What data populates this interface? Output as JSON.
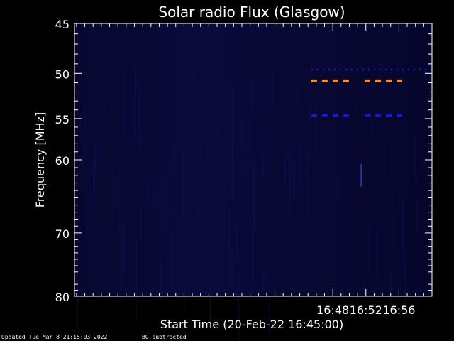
{
  "chart_data": {
    "type": "heatmap",
    "title": "Solar radio Flux (Glasgow)",
    "xlabel": "Start Time (20-Feb-22 16:45:00)",
    "ylabel": "Frequency [MHz]",
    "x_range_minutes": [
      16.75,
      60.0
    ],
    "x_ticks": [
      {
        "minute": 48,
        "label": "16:48"
      },
      {
        "minute": 52,
        "label": "16:52"
      },
      {
        "minute": 56,
        "label": "16:56"
      }
    ],
    "ylim": [
      45,
      80
    ],
    "y_scale": "log",
    "y_ticks": [
      45,
      50,
      55,
      60,
      70,
      80
    ],
    "y_tick_labels": [
      "45",
      "50",
      "55",
      "60",
      "70",
      "80"
    ],
    "grid": false,
    "background_color": "#0a0a38",
    "bands": [
      {
        "freq_mhz": 49.6,
        "color": "#1515c8",
        "segments": [
          [
            45.4,
            60.0
          ]
        ],
        "style": "dotted"
      },
      {
        "freq_mhz": 50.8,
        "color": "#ff8c28",
        "segments": [
          [
            45.4,
            50.55
          ],
          [
            51.85,
            56.55
          ]
        ],
        "style": "dashed"
      },
      {
        "freq_mhz": 54.6,
        "color": "#1818cc",
        "segments": [
          [
            45.4,
            50.55
          ],
          [
            51.85,
            56.55
          ]
        ],
        "style": "dashed"
      }
    ],
    "features": [
      {
        "type": "streak",
        "minute": 51.45,
        "freq_range_mhz": [
          60.5,
          63.5
        ],
        "color": "#2a3aa8"
      }
    ]
  },
  "footer": {
    "updated": "Updated Tue Mar  8 21:15:03 2022",
    "note": "BG subtracted"
  },
  "colors": {
    "axes": "#ffffff",
    "text": "#ffffff",
    "background": "#000000"
  }
}
